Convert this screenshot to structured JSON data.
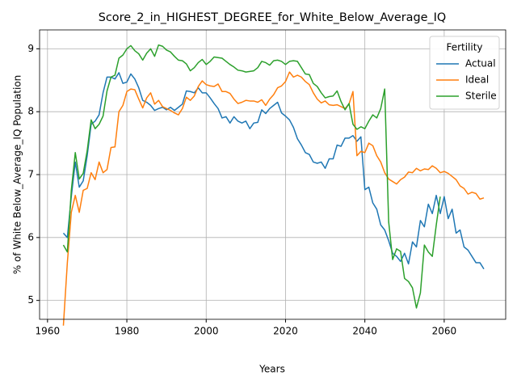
{
  "chart_data": {
    "type": "line",
    "title": "Score_2_in_HIGHEST_DEGREE_for_White_Below_Average_IQ",
    "xlabel": "Years",
    "ylabel": "% of White Below_Average_IQ Population",
    "legend_title": "Fertility",
    "legend": "upper right",
    "grid": true,
    "xlim": [
      1958,
      2075.5
    ],
    "ylim": [
      4.7,
      9.3
    ],
    "xticks": [
      1960,
      1980,
      2000,
      2020,
      2040,
      2060
    ],
    "yticks": [
      5,
      6,
      7,
      8,
      9
    ],
    "x": [
      1964,
      1965,
      1966,
      1967,
      1968,
      1969,
      1970,
      1971,
      1972,
      1973,
      1974,
      1975,
      1976,
      1977,
      1978,
      1979,
      1980,
      1981,
      1982,
      1983,
      1984,
      1985,
      1986,
      1987,
      1988,
      1989,
      1990,
      1991,
      1992,
      1993,
      1994,
      1995,
      1996,
      1997,
      1998,
      1999,
      2000,
      2001,
      2002,
      2003,
      2004,
      2005,
      2006,
      2007,
      2008,
      2009,
      2010,
      2011,
      2012,
      2013,
      2014,
      2015,
      2016,
      2017,
      2018,
      2019,
      2020,
      2021,
      2022,
      2023,
      2024,
      2025,
      2026,
      2027,
      2028,
      2029,
      2030,
      2031,
      2032,
      2033,
      2034,
      2035,
      2036,
      2037,
      2038,
      2039,
      2040,
      2041,
      2042,
      2043,
      2044,
      2045,
      2046,
      2047,
      2048,
      2049,
      2050,
      2051,
      2052,
      2053,
      2054,
      2055,
      2056,
      2057,
      2058,
      2059,
      2060,
      2061,
      2062,
      2063,
      2064,
      2065,
      2066,
      2067,
      2068,
      2069,
      2070
    ],
    "series": [
      {
        "name": "Actual",
        "color": "#1f77b4",
        "values": [
          6.07,
          6.0,
          6.65,
          7.2,
          6.8,
          6.9,
          7.3,
          7.8,
          7.85,
          7.95,
          8.3,
          8.55,
          8.55,
          8.52,
          8.62,
          8.45,
          8.47,
          8.6,
          8.52,
          8.38,
          8.18,
          8.15,
          8.1,
          8.02,
          8.05,
          8.07,
          8.03,
          8.07,
          8.02,
          8.07,
          8.12,
          8.33,
          8.32,
          8.3,
          8.38,
          8.3,
          8.3,
          8.22,
          8.13,
          8.05,
          7.9,
          7.92,
          7.82,
          7.92,
          7.85,
          7.82,
          7.85,
          7.73,
          7.82,
          7.83,
          8.03,
          7.97,
          8.05,
          8.1,
          8.15,
          7.98,
          7.93,
          7.87,
          7.75,
          7.57,
          7.47,
          7.35,
          7.32,
          7.2,
          7.18,
          7.2,
          7.1,
          7.25,
          7.25,
          7.47,
          7.45,
          7.58,
          7.58,
          7.62,
          7.53,
          7.6,
          6.76,
          6.8,
          6.55,
          6.45,
          6.2,
          6.12,
          5.95,
          5.75,
          5.7,
          5.62,
          5.75,
          5.58,
          5.93,
          5.85,
          6.27,
          6.17,
          6.53,
          6.38,
          6.67,
          6.38,
          6.65,
          6.3,
          6.45,
          6.07,
          6.12,
          5.85,
          5.8,
          5.7,
          5.6,
          5.6,
          5.5
        ]
      },
      {
        "name": "Ideal",
        "color": "#ff7f0e",
        "values": [
          4.6,
          5.6,
          6.4,
          6.67,
          6.4,
          6.75,
          6.78,
          7.03,
          6.92,
          7.2,
          7.03,
          7.08,
          7.43,
          7.44,
          8.0,
          8.1,
          8.32,
          8.36,
          8.35,
          8.2,
          8.06,
          8.22,
          8.3,
          8.12,
          8.18,
          8.08,
          8.05,
          8.02,
          7.98,
          7.95,
          8.05,
          8.23,
          8.18,
          8.25,
          8.4,
          8.49,
          8.43,
          8.41,
          8.4,
          8.44,
          8.32,
          8.32,
          8.29,
          8.2,
          8.13,
          8.15,
          8.18,
          8.17,
          8.17,
          8.15,
          8.19,
          8.1,
          8.2,
          8.27,
          8.38,
          8.41,
          8.48,
          8.63,
          8.55,
          8.58,
          8.55,
          8.48,
          8.43,
          8.3,
          8.2,
          8.14,
          8.17,
          8.11,
          8.1,
          8.11,
          8.08,
          8.05,
          8.12,
          8.32,
          7.3,
          7.37,
          7.35,
          7.5,
          7.46,
          7.3,
          7.2,
          7.03,
          6.93,
          6.89,
          6.85,
          6.92,
          6.96,
          7.04,
          7.03,
          7.1,
          7.06,
          7.09,
          7.08,
          7.14,
          7.1,
          7.03,
          7.05,
          7.02,
          6.97,
          6.92,
          6.82,
          6.78,
          6.69,
          6.72,
          6.7,
          6.61,
          6.63
        ]
      },
      {
        "name": "Sterile",
        "color": "#2ca02c",
        "values": [
          5.88,
          5.77,
          6.75,
          7.35,
          6.93,
          7.02,
          7.38,
          7.87,
          7.73,
          7.8,
          7.93,
          8.33,
          8.55,
          8.58,
          8.85,
          8.9,
          9.0,
          9.05,
          8.97,
          8.92,
          8.82,
          8.93,
          9.0,
          8.88,
          9.06,
          9.04,
          8.98,
          8.95,
          8.88,
          8.82,
          8.81,
          8.76,
          8.65,
          8.7,
          8.78,
          8.83,
          8.75,
          8.8,
          8.87,
          8.86,
          8.85,
          8.8,
          8.75,
          8.71,
          8.66,
          8.65,
          8.63,
          8.64,
          8.65,
          8.7,
          8.8,
          8.78,
          8.74,
          8.81,
          8.82,
          8.8,
          8.75,
          8.8,
          8.81,
          8.8,
          8.7,
          8.6,
          8.59,
          8.45,
          8.4,
          8.3,
          8.22,
          8.24,
          8.25,
          8.33,
          8.16,
          8.03,
          8.13,
          7.8,
          7.72,
          7.76,
          7.73,
          7.85,
          7.95,
          7.9,
          8.05,
          8.36,
          6.25,
          5.65,
          5.82,
          5.78,
          5.35,
          5.3,
          5.2,
          4.88,
          5.12,
          5.88,
          5.77,
          5.7,
          6.2,
          6.65,
          null,
          null,
          null,
          null,
          null,
          null,
          null,
          null,
          null,
          null,
          null
        ]
      }
    ]
  }
}
